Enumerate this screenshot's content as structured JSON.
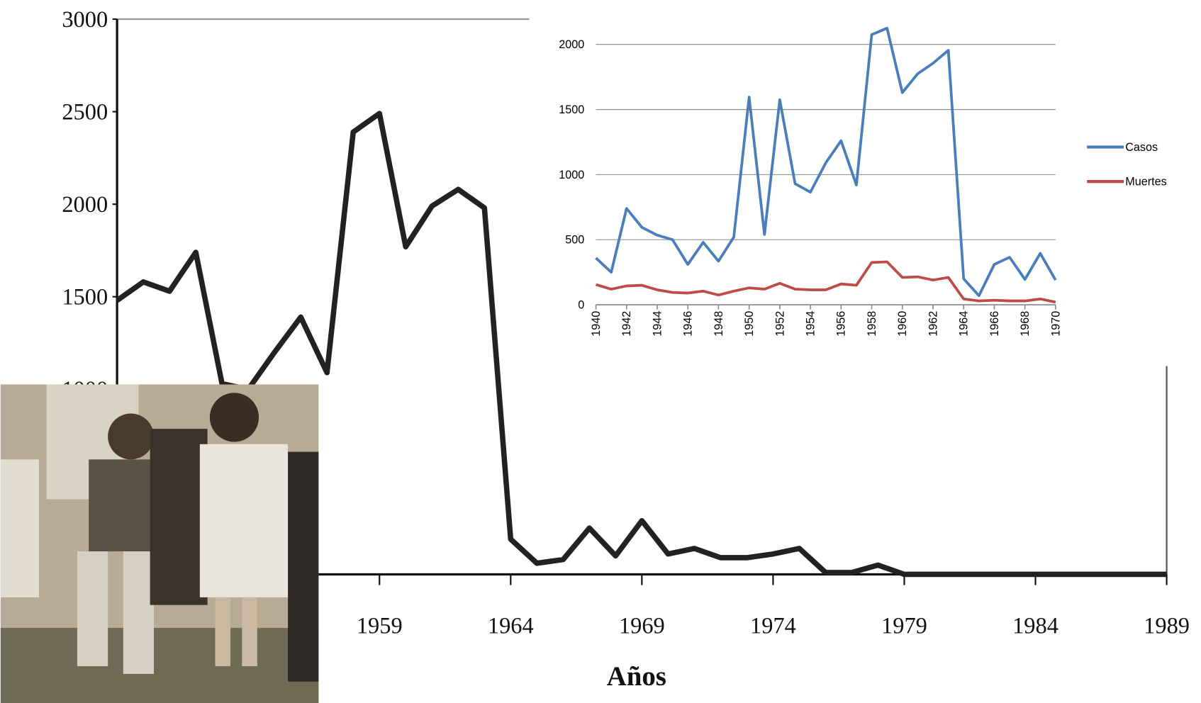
{
  "chart_data": [
    {
      "type": "line",
      "x_label": "Años",
      "x": [
        1949,
        1950,
        1951,
        1952,
        1953,
        1954,
        1955,
        1956,
        1957,
        1958,
        1959,
        1960,
        1961,
        1962,
        1963,
        1964,
        1965,
        1966,
        1967,
        1968,
        1969,
        1970,
        1971,
        1972,
        1973,
        1974,
        1975,
        1976,
        1977,
        1978,
        1979,
        1980,
        1981,
        1982,
        1983,
        1984,
        1985,
        1986,
        1987,
        1988,
        1989
      ],
      "series": [
        {
          "color": "#222222",
          "values": [
            1480,
            1580,
            1530,
            1740,
            1030,
            1000,
            1200,
            1390,
            1090,
            2390,
            2490,
            1770,
            1990,
            2080,
            1980,
            190,
            60,
            80,
            250,
            100,
            290,
            110,
            140,
            90,
            90,
            110,
            140,
            10,
            10,
            50,
            0,
            0,
            0,
            0,
            0,
            0,
            0,
            0,
            0,
            0,
            0
          ]
        }
      ],
      "xlim": [
        1949,
        1989
      ],
      "xticks": [
        1959,
        1964,
        1969,
        1974,
        1979,
        1984,
        1989
      ],
      "ylim": [
        0,
        3000
      ],
      "yticks": [
        1000,
        1500,
        2000,
        2500,
        3000
      ],
      "grid": false
    },
    {
      "type": "line",
      "x": [
        1940,
        1941,
        1942,
        1943,
        1944,
        1945,
        1946,
        1947,
        1948,
        1949,
        1950,
        1951,
        1952,
        1953,
        1954,
        1955,
        1956,
        1957,
        1958,
        1959,
        1960,
        1961,
        1962,
        1963,
        1964,
        1965,
        1966,
        1967,
        1968,
        1969,
        1970
      ],
      "series": [
        {
          "name": "Casos",
          "color": "#4a7ebb",
          "values": [
            360,
            250,
            740,
            595,
            535,
            500,
            310,
            480,
            335,
            520,
            1595,
            540,
            1575,
            930,
            865,
            1090,
            1260,
            920,
            2075,
            2125,
            1630,
            1775,
            1855,
            1955,
            200,
            70,
            310,
            365,
            195,
            395,
            190
          ]
        },
        {
          "name": "Muertes",
          "color": "#be4b48",
          "values": [
            155,
            120,
            145,
            150,
            115,
            95,
            90,
            105,
            75,
            105,
            130,
            120,
            165,
            120,
            115,
            115,
            160,
            150,
            325,
            330,
            210,
            215,
            190,
            210,
            45,
            30,
            35,
            30,
            30,
            45,
            20
          ]
        }
      ],
      "xlim": [
        1940,
        1970
      ],
      "xticks": [
        1940,
        1942,
        1944,
        1946,
        1948,
        1950,
        1952,
        1954,
        1956,
        1958,
        1960,
        1962,
        1964,
        1966,
        1968,
        1970
      ],
      "ylim": [
        0,
        2500
      ],
      "yticks": [
        0,
        500,
        1000,
        1500,
        2000
      ],
      "grid": true,
      "legend": "right"
    }
  ]
}
